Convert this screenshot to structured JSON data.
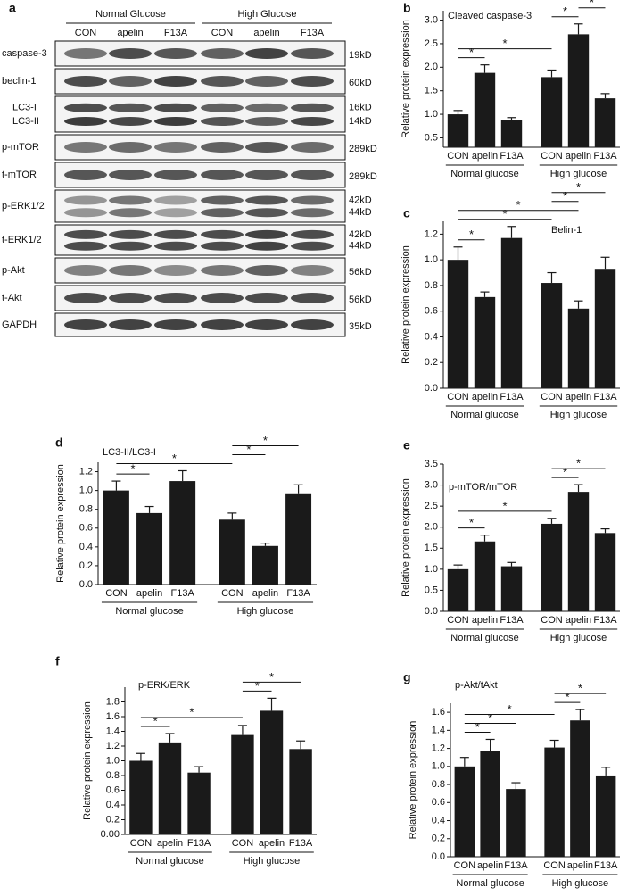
{
  "blot": {
    "label": "a",
    "groups": [
      "Normal Glucose",
      "High Glucose"
    ],
    "lanes": [
      "CON",
      "apelin",
      "F13A",
      "CON",
      "apelin",
      "F13A"
    ],
    "rows": [
      {
        "names": [
          "caspase-3"
        ],
        "sizes": [
          "19kD"
        ]
      },
      {
        "names": [
          "beclin-1"
        ],
        "sizes": [
          "60kD"
        ]
      },
      {
        "names": [
          "LC3-I",
          "LC3-II"
        ],
        "sizes": [
          "16kD",
          "14kD"
        ]
      },
      {
        "names": [
          "p-mTOR"
        ],
        "sizes": [
          "289kD"
        ]
      },
      {
        "names": [
          "t-mTOR"
        ],
        "sizes": [
          "289kD"
        ]
      },
      {
        "names": [
          "p-ERK1/2"
        ],
        "sizes": [
          "42kD",
          "44kD"
        ]
      },
      {
        "names": [
          "t-ERK1/2"
        ],
        "sizes": [
          "42kD",
          "44kD"
        ]
      },
      {
        "names": [
          "p-Akt"
        ],
        "sizes": [
          "56kD"
        ]
      },
      {
        "names": [
          "t-Akt"
        ],
        "sizes": [
          "56kD"
        ]
      },
      {
        "names": [
          "GAPDH"
        ],
        "sizes": [
          "35kD"
        ]
      }
    ]
  },
  "chart_data": [
    {
      "type": "bar",
      "label": "b",
      "title": "Cleaved caspase-3",
      "ylabel": "Relative protein expression",
      "categories": [
        "CON",
        "apelin",
        "F13A",
        "CON",
        "apelin",
        "F13A"
      ],
      "groups": [
        "Normal glucose",
        "High glucose"
      ],
      "values": [
        1.0,
        1.88,
        0.87,
        1.79,
        2.7,
        1.34
      ],
      "errors": [
        0.08,
        0.17,
        0.06,
        0.15,
        0.22,
        0.1
      ],
      "color": "#1a1a1a",
      "ylim": [
        0.3,
        3.2
      ],
      "yticks": [
        0.5,
        {
          "value": 1,
          "label": "1.0"
        },
        1.5,
        {
          "value": 2,
          "label": "2.0"
        },
        2.5,
        {
          "value": 3,
          "label": "3.0"
        }
      ],
      "significance": [
        {
          "pair": [
            0,
            1
          ],
          "label": "*"
        },
        {
          "pair": [
            0,
            3
          ],
          "label": "*"
        },
        {
          "pair": [
            3,
            4
          ],
          "label": "*"
        },
        {
          "pair": [
            4,
            5
          ],
          "label": "*"
        }
      ]
    },
    {
      "type": "bar",
      "label": "c",
      "title": "Belin-1",
      "ylabel": "Relative protein expression",
      "categories": [
        "CON",
        "apelin",
        "F13A",
        "CON",
        "apelin",
        "F13A"
      ],
      "groups": [
        "Normal glucose",
        "High glucose"
      ],
      "values": [
        1.0,
        0.71,
        1.17,
        0.82,
        0.62,
        0.93
      ],
      "errors": [
        0.1,
        0.04,
        0.09,
        0.08,
        0.06,
        0.09
      ],
      "color": "#1a1a1a",
      "ylim": [
        0,
        1.3
      ],
      "yticks": [
        {
          "value": 0,
          "label": "0.0"
        },
        0.2,
        0.4,
        0.6,
        0.8,
        {
          "value": 1,
          "label": "1.0"
        },
        1.2
      ],
      "significance": [
        {
          "pair": [
            0,
            1
          ],
          "label": "*"
        },
        {
          "pair": [
            0,
            3
          ],
          "label": "*"
        },
        {
          "pair": [
            0,
            4
          ],
          "label": "*"
        },
        {
          "pair": [
            3,
            4
          ],
          "label": "*"
        },
        {
          "pair": [
            3,
            5
          ],
          "label": "*"
        }
      ]
    },
    {
      "type": "bar",
      "label": "d",
      "title": "LC3-II/LC3-I",
      "ylabel": "Relative protein expression",
      "categories": [
        "CON",
        "apelin",
        "F13A",
        "CON",
        "apelin",
        "F13A"
      ],
      "groups": [
        "Normal glucose",
        "High glucose"
      ],
      "values": [
        1.0,
        0.76,
        1.1,
        0.69,
        0.41,
        0.97
      ],
      "errors": [
        0.1,
        0.07,
        0.11,
        0.07,
        0.03,
        0.09
      ],
      "color": "#1a1a1a",
      "ylim": [
        0,
        1.3
      ],
      "yticks": [
        {
          "value": 0,
          "label": "0.0"
        },
        0.2,
        0.4,
        0.6,
        0.8,
        {
          "value": 1,
          "label": "1.0"
        },
        1.2
      ],
      "significance": [
        {
          "pair": [
            0,
            1
          ],
          "label": "*"
        },
        {
          "pair": [
            0,
            3
          ],
          "label": "*"
        },
        {
          "pair": [
            3,
            4
          ],
          "label": "*"
        },
        {
          "pair": [
            3,
            5
          ],
          "label": "*"
        }
      ]
    },
    {
      "type": "bar",
      "label": "e",
      "title": "p-mTOR/mTOR",
      "ylabel": "Relative protein expression",
      "categories": [
        "CON",
        "apelin",
        "F13A",
        "CON",
        "apelin",
        "F13A"
      ],
      "groups": [
        "Normal glucose",
        "High glucose"
      ],
      "values": [
        1.0,
        1.66,
        1.07,
        2.08,
        2.84,
        1.86
      ],
      "errors": [
        0.1,
        0.15,
        0.09,
        0.13,
        0.17,
        0.1
      ],
      "color": "#1a1a1a",
      "ylim": [
        0,
        3.5
      ],
      "yticks": [
        {
          "value": 0,
          "label": "0.0"
        },
        0.5,
        {
          "value": 1,
          "label": "1.0"
        },
        1.5,
        {
          "value": 2,
          "label": "2.0"
        },
        2.5,
        {
          "value": 3,
          "label": "3.0"
        },
        3.5
      ],
      "significance": [
        {
          "pair": [
            0,
            1
          ],
          "label": "*"
        },
        {
          "pair": [
            0,
            3
          ],
          "label": "*"
        },
        {
          "pair": [
            3,
            4
          ],
          "label": "*"
        },
        {
          "pair": [
            3,
            5
          ],
          "label": "*"
        }
      ]
    },
    {
      "type": "bar",
      "label": "f",
      "title": "p-ERK/ERK",
      "ylabel": "Relative protein expression",
      "categories": [
        "CON",
        "apelin",
        "F13A",
        "CON",
        "apelin",
        "F13A"
      ],
      "groups": [
        "Normal glucose",
        "High glucose"
      ],
      "values": [
        1.0,
        1.25,
        0.84,
        1.35,
        1.68,
        1.16
      ],
      "errors": [
        0.1,
        0.12,
        0.08,
        0.13,
        0.17,
        0.11
      ],
      "color": "#1a1a1a",
      "ylim": [
        0,
        2.0
      ],
      "yticks": [
        {
          "value": 0,
          "label": "0.00"
        },
        0.2,
        0.4,
        0.6,
        0.8,
        {
          "value": 1,
          "label": "1.0"
        },
        1.2,
        1.4,
        1.6,
        1.8
      ],
      "significance": [
        {
          "pair": [
            0,
            1
          ],
          "label": "*"
        },
        {
          "pair": [
            0,
            3
          ],
          "label": "*"
        },
        {
          "pair": [
            3,
            4
          ],
          "label": "*"
        },
        {
          "pair": [
            3,
            5
          ],
          "label": "*"
        }
      ]
    },
    {
      "type": "bar",
      "label": "g",
      "title": "p-Akt/tAkt",
      "ylabel": "Relative protein expression",
      "categories": [
        "CON",
        "apelin",
        "F13A",
        "CON",
        "apelin",
        "F13A"
      ],
      "groups": [
        "Normal glucose",
        "High glucose"
      ],
      "values": [
        1.0,
        1.17,
        0.75,
        1.21,
        1.51,
        0.9
      ],
      "errors": [
        0.1,
        0.13,
        0.07,
        0.08,
        0.12,
        0.09
      ],
      "color": "#1a1a1a",
      "ylim": [
        0,
        1.7
      ],
      "yticks": [
        {
          "value": 0,
          "label": "0.0"
        },
        0.2,
        0.4,
        0.6,
        0.8,
        {
          "value": 1,
          "label": "1.0"
        },
        1.2,
        1.4,
        1.6
      ],
      "significance": [
        {
          "pair": [
            0,
            1
          ],
          "label": "*"
        },
        {
          "pair": [
            0,
            2
          ],
          "label": "*"
        },
        {
          "pair": [
            0,
            3
          ],
          "label": "*"
        },
        {
          "pair": [
            3,
            4
          ],
          "label": "*"
        },
        {
          "pair": [
            3,
            5
          ],
          "label": "*"
        }
      ]
    }
  ]
}
